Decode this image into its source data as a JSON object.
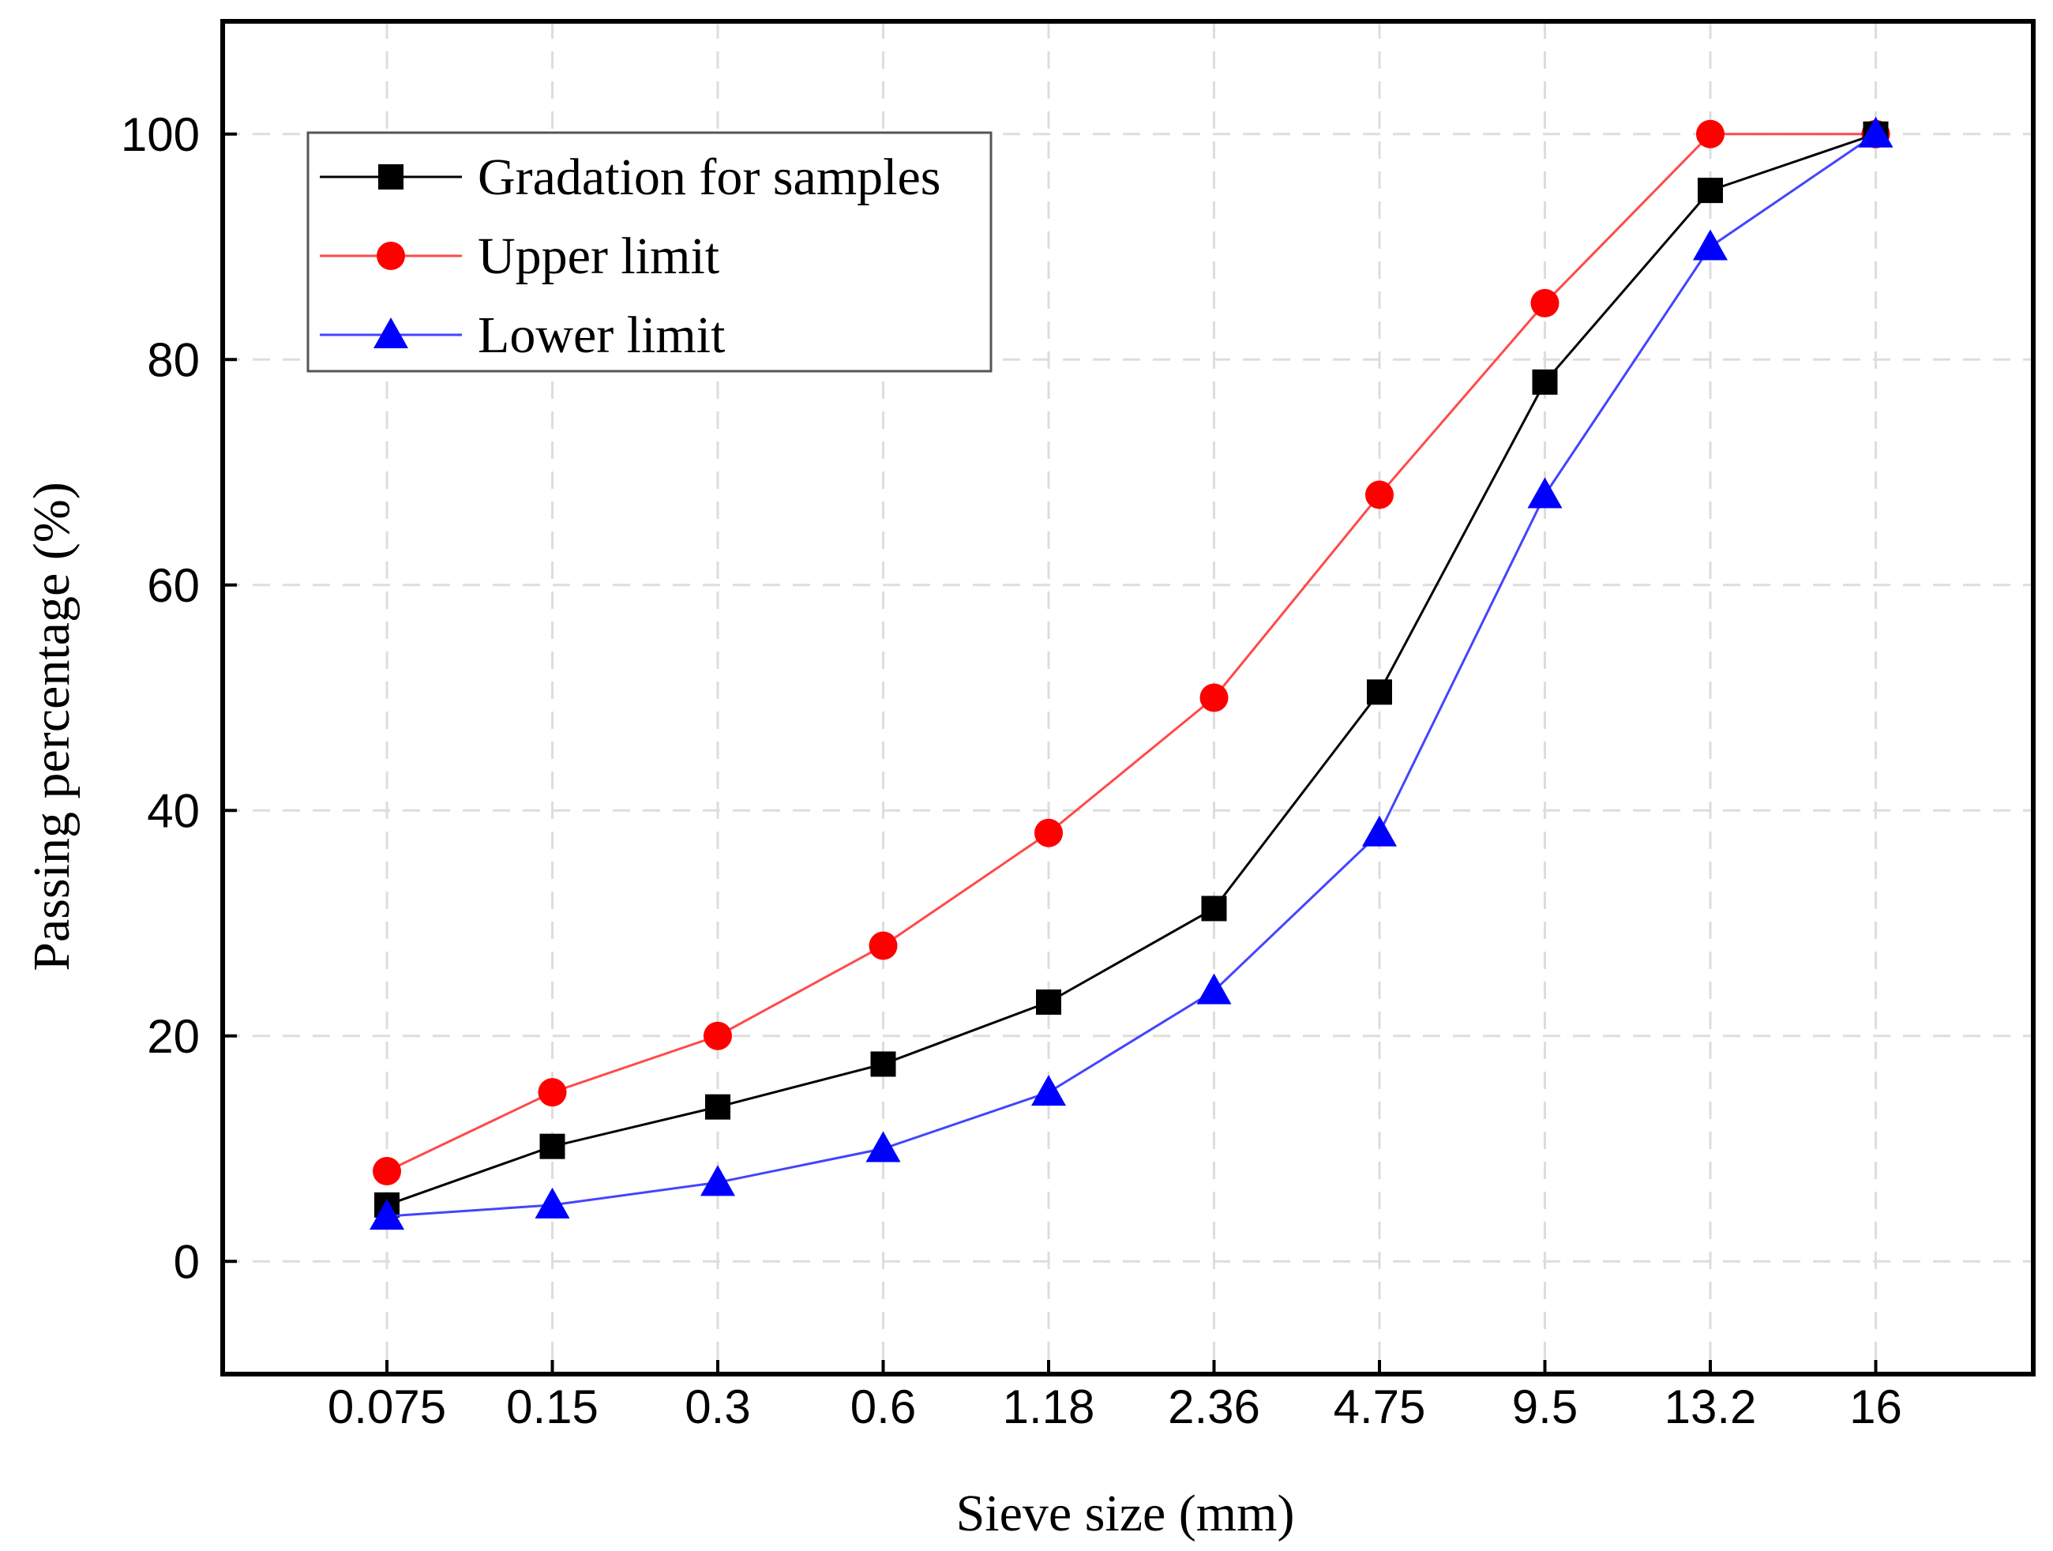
{
  "chart_data": {
    "type": "line",
    "title": "",
    "xlabel": "Sieve size (mm)",
    "ylabel": "Passing percentage (%)",
    "categories": [
      "0.075",
      "0.15",
      "0.3",
      "0.6",
      "1.18",
      "2.36",
      "4.75",
      "9.5",
      "13.2",
      "16"
    ],
    "ylim": [
      -10,
      110
    ],
    "yticks": [
      0,
      20,
      40,
      60,
      80,
      100
    ],
    "grid": true,
    "legend_position": "top-left",
    "series": [
      {
        "name": "Gradation for samples",
        "marker": "square",
        "color": "#000000",
        "marker_color": "#000000",
        "values": [
          5,
          10.2,
          13.7,
          17.5,
          23,
          31.3,
          50.5,
          78,
          95,
          100
        ]
      },
      {
        "name": "Upper limit",
        "marker": "circle",
        "color": "#ff4a4a",
        "marker_color": "#ff0000",
        "values": [
          8,
          15,
          20,
          28,
          38,
          50,
          68,
          85,
          100,
          100
        ]
      },
      {
        "name": "Lower limit",
        "marker": "triangle",
        "color": "#4444ff",
        "marker_color": "#0000ff",
        "values": [
          4,
          5,
          7,
          10,
          15,
          24,
          38,
          68,
          90,
          100
        ]
      }
    ]
  }
}
